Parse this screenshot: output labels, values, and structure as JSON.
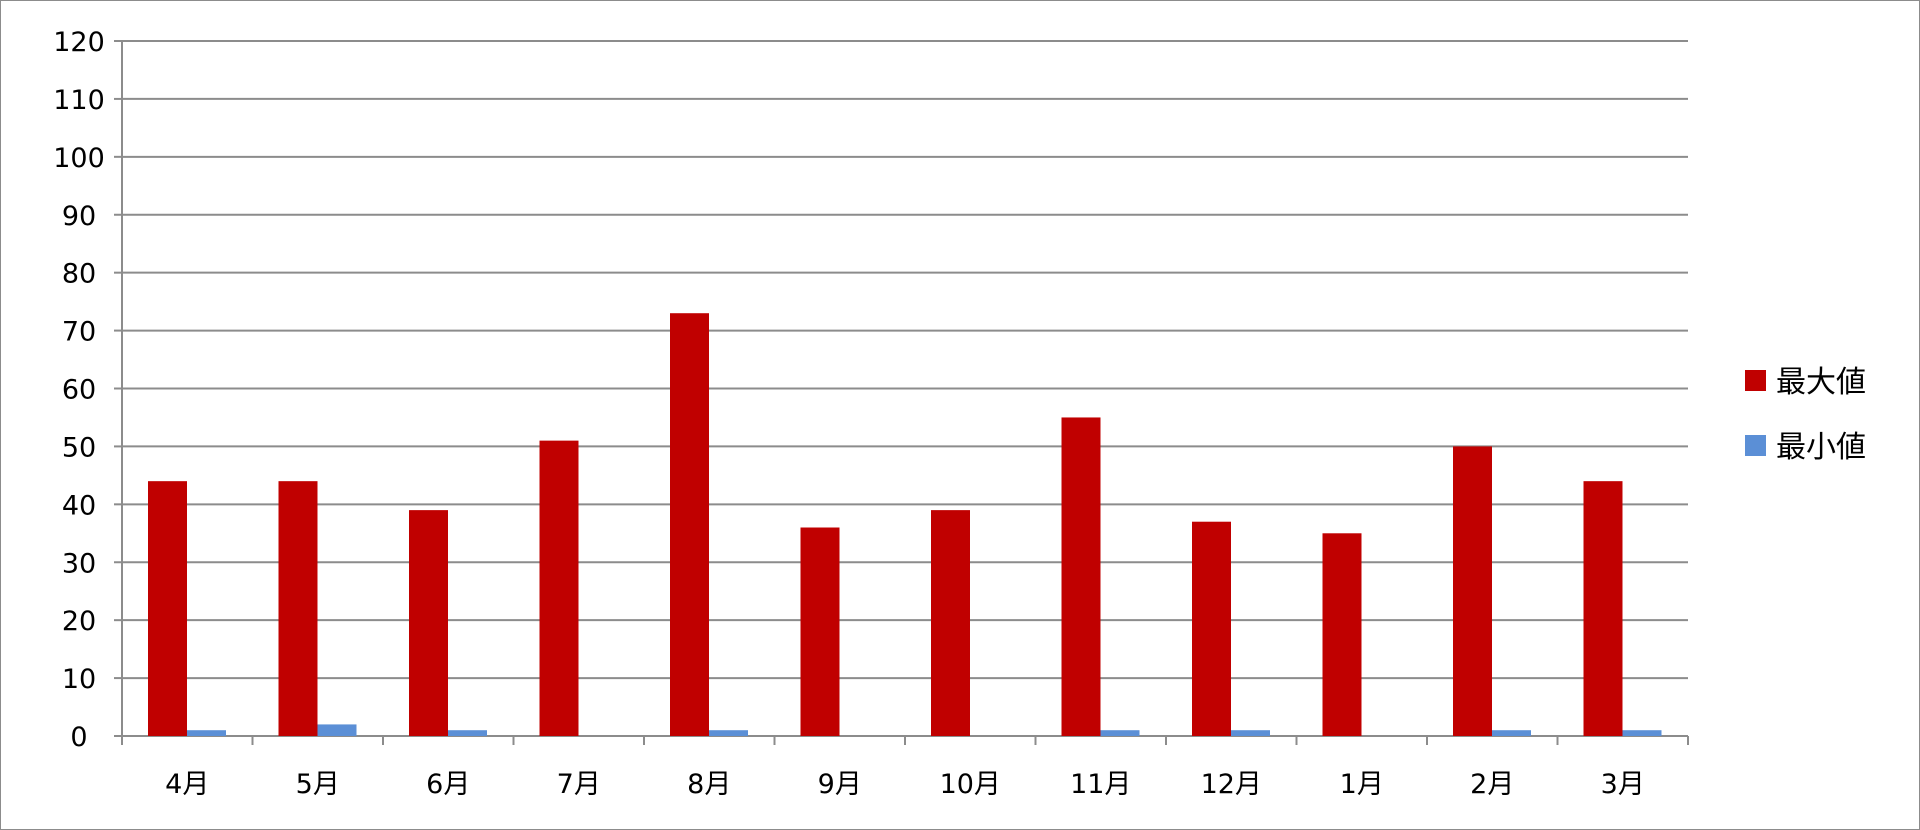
{
  "chart_data": {
    "type": "bar",
    "categories": [
      "4月",
      "5月",
      "6月",
      "7月",
      "8月",
      "9月",
      "10月",
      "11月",
      "12月",
      "1月",
      "2月",
      "3月"
    ],
    "series": [
      {
        "name": "最大値",
        "color": "#c00000",
        "values": [
          44,
          44,
          39,
          51,
          73,
          36,
          39,
          55,
          37,
          35,
          50,
          44
        ]
      },
      {
        "name": "最小値",
        "color": "#5b8fd6",
        "values": [
          1,
          2,
          1,
          0,
          1,
          0,
          0,
          1,
          1,
          0,
          1,
          1
        ]
      }
    ],
    "ylim": [
      0,
      120
    ],
    "yticks": [
      0,
      10,
      20,
      30,
      40,
      50,
      60,
      70,
      80,
      90,
      100,
      110,
      120
    ],
    "grid": true,
    "legend_position": "right",
    "title": "",
    "xlabel": "",
    "ylabel": ""
  }
}
